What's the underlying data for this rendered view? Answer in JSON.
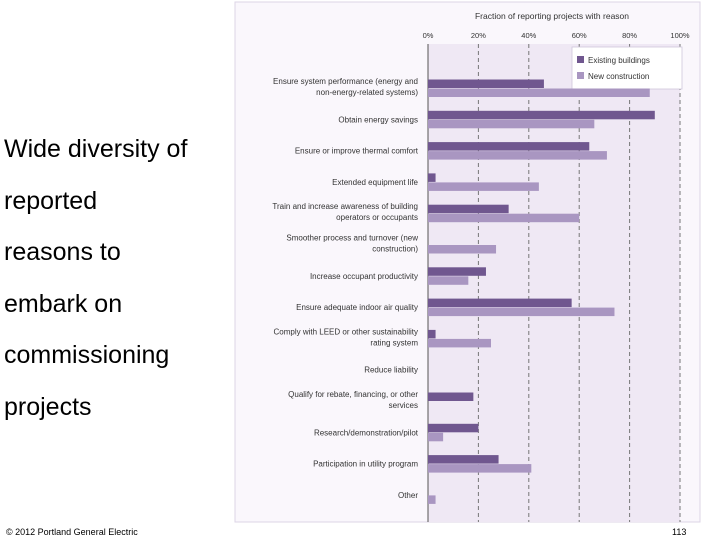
{
  "slide": {
    "text_lines": [
      "Wide diversity of",
      "reported",
      "reasons to",
      "embark on",
      "commissioning",
      "projects"
    ],
    "copyright": "© 2012 Portland General Electric",
    "page_number": "113"
  },
  "chart_data": {
    "type": "bar",
    "orientation": "horizontal",
    "title": "Fraction of reporting projects with reason",
    "xlim": [
      0,
      100
    ],
    "x_ticks": [
      "0%",
      "20%",
      "40%",
      "60%",
      "80%",
      "100%"
    ],
    "grid": "dashed vertical",
    "legend_position": "top-right",
    "categories": [
      [
        "Ensure system performance (energy and",
        "non-energy-related systems)"
      ],
      [
        "Obtain energy savings"
      ],
      [
        "Ensure or improve thermal comfort"
      ],
      [
        "Extended equipment life"
      ],
      [
        "Train and increase awareness of building",
        "operators or occupants"
      ],
      [
        "Smoother process and turnover (new",
        "construction)"
      ],
      [
        "Increase occupant productivity"
      ],
      [
        "Ensure adequate indoor air quality"
      ],
      [
        "Comply with LEED or other sustainability",
        "rating system"
      ],
      [
        "Reduce liability"
      ],
      [
        "Qualify for rebate, financing, or other",
        "services"
      ],
      [
        "Research/demonstration/pilot"
      ],
      [
        "Participation in utility program"
      ],
      [
        "Other"
      ]
    ],
    "series": [
      {
        "name": "Existing buildings",
        "color": "#70578f",
        "values": [
          46,
          90,
          64,
          3,
          32,
          0,
          23,
          57,
          3,
          0,
          18,
          20,
          28,
          0
        ]
      },
      {
        "name": "New construction",
        "color": "#a996c1",
        "values": [
          88,
          66,
          71,
          44,
          60,
          27,
          16,
          74,
          25,
          0,
          0,
          6,
          41,
          3
        ]
      }
    ]
  }
}
